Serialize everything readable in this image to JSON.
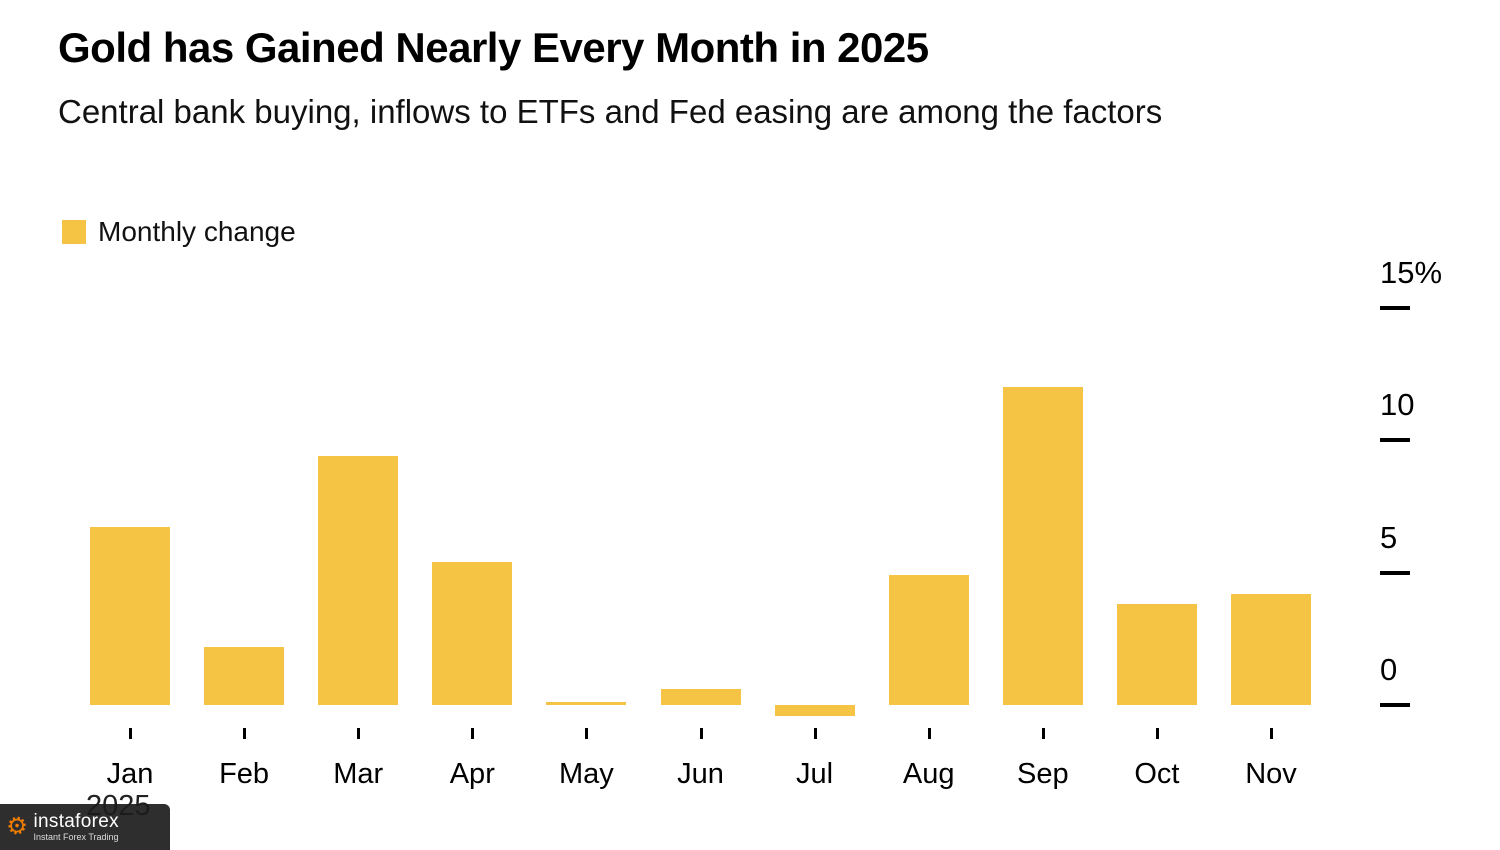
{
  "chart_data": {
    "type": "bar",
    "title": "Gold has Gained Nearly Every Month in 2025",
    "subtitle": "Central bank buying, inflows to ETFs and Fed easing are among the factors",
    "legend": [
      {
        "label": "Monthly change",
        "color": "#F6C445"
      }
    ],
    "legend_position": "top-left",
    "categories": [
      "Jan",
      "Feb",
      "Mar",
      "Apr",
      "May",
      "Jun",
      "Jul",
      "Aug",
      "Sep",
      "Oct",
      "Nov"
    ],
    "values": [
      6.7,
      2.2,
      9.4,
      5.4,
      0.1,
      0.6,
      -0.4,
      4.9,
      12.0,
      3.8,
      4.2
    ],
    "x_axis_year": "2025",
    "y_ticks": [
      {
        "value": 15,
        "label": "15%"
      },
      {
        "value": 10,
        "label": "10"
      },
      {
        "value": 5,
        "label": "5"
      },
      {
        "value": 0,
        "label": "0"
      }
    ],
    "ylim": [
      -1,
      16
    ],
    "bar_color": "#F6C445",
    "grid": false,
    "y_axis_position": "right"
  },
  "watermark": {
    "brand": "instaforex",
    "tagline": "Instant Forex Trading"
  }
}
